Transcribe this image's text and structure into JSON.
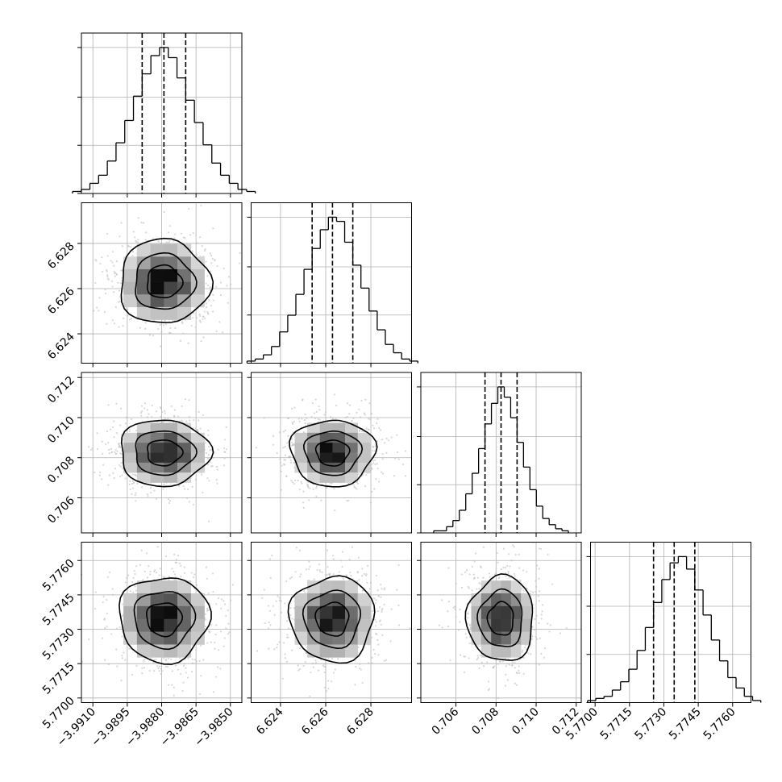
{
  "chart_data": {
    "type": "corner",
    "title": "",
    "grid": true,
    "style": {
      "line_color": "#000000",
      "grid_color": "#b0b0b0",
      "scatter_color": "#bdbdbd",
      "density_cmap": [
        "#ffffff",
        "#000000"
      ]
    },
    "parameters": [
      {
        "index": 0,
        "center": -3.9879,
        "quantiles": [
          -3.98885,
          -3.9879,
          -3.98695
        ],
        "sigma": 0.00095,
        "range": [
          -3.9915,
          -3.9845
        ],
        "ticks": [
          {
            "value": -3.991,
            "label": "−3.9910"
          },
          {
            "value": -3.9895,
            "label": "−3.9895"
          },
          {
            "value": -3.988,
            "label": "−3.9880"
          },
          {
            "value": -3.9865,
            "label": "−3.9865"
          },
          {
            "value": -3.985,
            "label": "−3.9850"
          }
        ],
        "hist_counts": [
          1,
          2,
          5,
          9,
          16,
          25,
          36,
          48,
          59,
          68,
          72,
          67,
          57,
          46,
          35,
          24,
          15,
          9,
          5,
          2,
          1
        ]
      },
      {
        "index": 1,
        "center": 6.6263,
        "quantiles": [
          6.6254,
          6.6263,
          6.6272
        ],
        "sigma": 0.0009,
        "range": [
          6.6227,
          6.6298
        ],
        "ticks": [
          {
            "value": 6.624,
            "label": "6.624"
          },
          {
            "value": 6.626,
            "label": "6.626"
          },
          {
            "value": 6.628,
            "label": "6.628"
          }
        ],
        "hist_counts": [
          1,
          2,
          4,
          8,
          15,
          23,
          33,
          45,
          55,
          64,
          70,
          68,
          58,
          47,
          36,
          25,
          16,
          9,
          5,
          2,
          1
        ]
      },
      {
        "index": 2,
        "center": 0.70825,
        "quantiles": [
          0.70745,
          0.70825,
          0.70905
        ],
        "sigma": 0.0008,
        "range": [
          0.70425,
          0.71225
        ],
        "ticks": [
          {
            "value": 0.706,
            "label": "0.706"
          },
          {
            "value": 0.708,
            "label": "0.708"
          },
          {
            "value": 0.71,
            "label": "0.710"
          },
          {
            "value": 0.712,
            "label": "0.712"
          }
        ],
        "hist_counts": [
          1,
          1,
          3,
          6,
          11,
          19,
          29,
          41,
          53,
          63,
          71,
          66,
          56,
          44,
          32,
          21,
          13,
          7,
          4,
          2,
          1
        ]
      },
      {
        "index": 3,
        "center": 5.77345,
        "quantiles": [
          5.77255,
          5.77345,
          5.77435
        ],
        "sigma": 0.0009,
        "range": [
          5.7698,
          5.7768
        ],
        "ticks": [
          {
            "value": 5.77,
            "label": "5.7700"
          },
          {
            "value": 5.7715,
            "label": "5.7715"
          },
          {
            "value": 5.773,
            "label": "5.7730"
          },
          {
            "value": 5.7745,
            "label": "5.7745"
          },
          {
            "value": 5.776,
            "label": "5.7760"
          }
        ],
        "hist_counts": [
          1,
          2,
          3,
          6,
          10,
          16,
          25,
          36,
          48,
          59,
          67,
          70,
          64,
          54,
          42,
          30,
          20,
          12,
          7,
          3,
          1
        ]
      }
    ],
    "contour_levels_sigma": [
      0.7,
      1.2,
      1.8
    ],
    "n_scatter_points_per_panel": 700
  }
}
